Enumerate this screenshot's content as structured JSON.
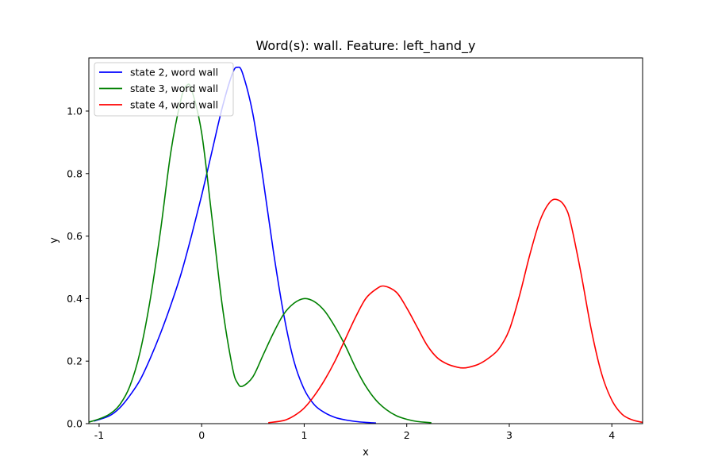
{
  "chart_data": {
    "type": "line",
    "title": "Word(s): wall. Feature: left_hand_y",
    "xlabel": "x",
    "ylabel": "y",
    "xlim": [
      -1.1,
      4.3
    ],
    "ylim": [
      0,
      1.17
    ],
    "xticks": [
      -1,
      0,
      1,
      2,
      3,
      4
    ],
    "yticks": [
      0.0,
      0.2,
      0.4,
      0.6,
      0.8,
      1.0
    ],
    "ytick_labels": [
      "0.0",
      "0.2",
      "0.4",
      "0.6",
      "0.8",
      "1.0"
    ],
    "grid": false,
    "legend_position": "top-left",
    "series": [
      {
        "name": "state 2, word wall",
        "color": "#0000ff",
        "x": [
          -1.05,
          -0.9,
          -0.8,
          -0.7,
          -0.6,
          -0.5,
          -0.4,
          -0.3,
          -0.2,
          -0.1,
          0.0,
          0.1,
          0.2,
          0.3,
          0.35,
          0.4,
          0.5,
          0.6,
          0.7,
          0.8,
          0.9,
          1.0,
          1.1,
          1.2,
          1.3,
          1.4,
          1.5,
          1.6,
          1.7
        ],
        "y": [
          0.008,
          0.025,
          0.05,
          0.09,
          0.14,
          0.21,
          0.29,
          0.38,
          0.48,
          0.6,
          0.73,
          0.87,
          1.01,
          1.12,
          1.14,
          1.12,
          0.99,
          0.78,
          0.55,
          0.35,
          0.2,
          0.11,
          0.06,
          0.035,
          0.02,
          0.012,
          0.007,
          0.004,
          0.002
        ]
      },
      {
        "name": "state 3, word wall",
        "color": "#008000",
        "x": [
          -1.1,
          -1.0,
          -0.9,
          -0.8,
          -0.7,
          -0.6,
          -0.5,
          -0.4,
          -0.3,
          -0.2,
          -0.15,
          -0.1,
          0.0,
          0.1,
          0.2,
          0.3,
          0.35,
          0.4,
          0.5,
          0.6,
          0.7,
          0.8,
          0.9,
          1.0,
          1.1,
          1.2,
          1.3,
          1.4,
          1.5,
          1.6,
          1.7,
          1.8,
          1.9,
          2.0,
          2.1,
          2.24
        ],
        "y": [
          0.005,
          0.015,
          0.03,
          0.06,
          0.12,
          0.23,
          0.4,
          0.62,
          0.87,
          1.04,
          1.08,
          1.07,
          0.93,
          0.66,
          0.38,
          0.18,
          0.13,
          0.12,
          0.15,
          0.22,
          0.29,
          0.35,
          0.385,
          0.4,
          0.39,
          0.36,
          0.31,
          0.25,
          0.18,
          0.12,
          0.075,
          0.045,
          0.025,
          0.014,
          0.007,
          0.003
        ]
      },
      {
        "name": "state 4, word wall",
        "color": "#ff0000",
        "x": [
          0.65,
          0.8,
          0.9,
          1.0,
          1.1,
          1.2,
          1.3,
          1.4,
          1.5,
          1.6,
          1.7,
          1.78,
          1.9,
          2.0,
          2.1,
          2.2,
          2.3,
          2.4,
          2.5,
          2.55,
          2.6,
          2.7,
          2.8,
          2.9,
          3.0,
          3.1,
          3.2,
          3.3,
          3.4,
          3.48,
          3.55,
          3.6,
          3.7,
          3.8,
          3.9,
          4.0,
          4.1,
          4.2,
          4.3
        ],
        "y": [
          0.003,
          0.01,
          0.025,
          0.05,
          0.09,
          0.14,
          0.2,
          0.27,
          0.34,
          0.4,
          0.43,
          0.44,
          0.42,
          0.37,
          0.31,
          0.25,
          0.21,
          0.19,
          0.18,
          0.178,
          0.18,
          0.19,
          0.21,
          0.24,
          0.3,
          0.41,
          0.54,
          0.65,
          0.71,
          0.715,
          0.69,
          0.64,
          0.48,
          0.3,
          0.16,
          0.075,
          0.03,
          0.012,
          0.004
        ]
      }
    ]
  }
}
